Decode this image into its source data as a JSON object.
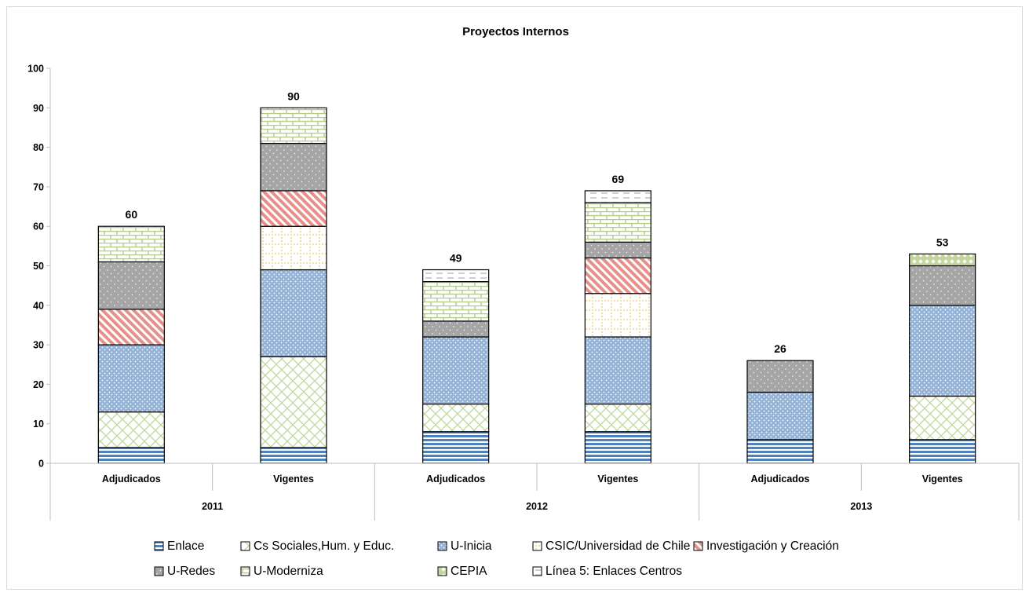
{
  "chart_data": {
    "type": "bar",
    "stacked": true,
    "title": "Proyectos Internos",
    "xlabel": "",
    "ylabel": "",
    "ylim": [
      0,
      100
    ],
    "yticks": [
      0,
      10,
      20,
      30,
      40,
      50,
      60,
      70,
      80,
      90,
      100
    ],
    "grid": false,
    "legend_position": "bottom",
    "groups": [
      {
        "label": "2011",
        "categories": [
          "Adjudicados",
          "Vigentes"
        ]
      },
      {
        "label": "2012",
        "categories": [
          "Adjudicados",
          "Vigentes"
        ]
      },
      {
        "label": "2013",
        "categories": [
          "Adjudicados",
          "Vigentes"
        ]
      }
    ],
    "categories": [
      "Adjudicados",
      "Vigentes",
      "Adjudicados",
      "Vigentes",
      "Adjudicados",
      "Vigentes"
    ],
    "totals": [
      60,
      90,
      49,
      69,
      26,
      53
    ],
    "series": [
      {
        "name": "Enlace",
        "color": "#4f81bd",
        "pattern": "hstripe",
        "values": [
          4,
          4,
          8,
          8,
          6,
          6
        ]
      },
      {
        "name": "Cs Sociales,Hum. y  Educ.",
        "color": "#c3d69b",
        "pattern": "diamond",
        "values": [
          9,
          23,
          7,
          7,
          0,
          11
        ]
      },
      {
        "name": "U-Inicia",
        "color": "#95b3d7",
        "pattern": "dots",
        "values": [
          17,
          22,
          17,
          17,
          12,
          23
        ]
      },
      {
        "name": "CSIC/Universidad de Chile",
        "color": "#f2e6b3",
        "pattern": "dotgrid",
        "values": [
          0,
          11,
          0,
          11,
          0,
          0
        ]
      },
      {
        "name": "Investigación y Creación",
        "color": "#e6a3a0",
        "pattern": "diag",
        "values": [
          9,
          9,
          0,
          9,
          0,
          0
        ]
      },
      {
        "name": "U-Redes",
        "color": "#a6a6a6",
        "pattern": "sparse",
        "values": [
          12,
          12,
          4,
          4,
          8,
          10
        ]
      },
      {
        "name": "U-Moderniza",
        "color": "#c3d69b",
        "pattern": "brick",
        "values": [
          9,
          9,
          10,
          10,
          0,
          0
        ]
      },
      {
        "name": "CEPIA",
        "color": "#c3d69b",
        "pattern": "circles",
        "values": [
          0,
          0,
          0,
          0,
          0,
          3
        ]
      },
      {
        "name": "Línea 5: Enlaces Centros",
        "color": "#d9d9d9",
        "pattern": "dash",
        "values": [
          0,
          0,
          3,
          3,
          0,
          0
        ]
      }
    ],
    "legend_rows": [
      [
        "Enlace",
        "Cs Sociales,Hum. y  Educ.",
        "U-Inicia",
        "CSIC/Universidad de Chile",
        "Investigación y Creación"
      ],
      [
        "U-Redes",
        "U-Moderniza",
        "CEPIA",
        "Línea 5: Enlaces Centros"
      ]
    ]
  }
}
